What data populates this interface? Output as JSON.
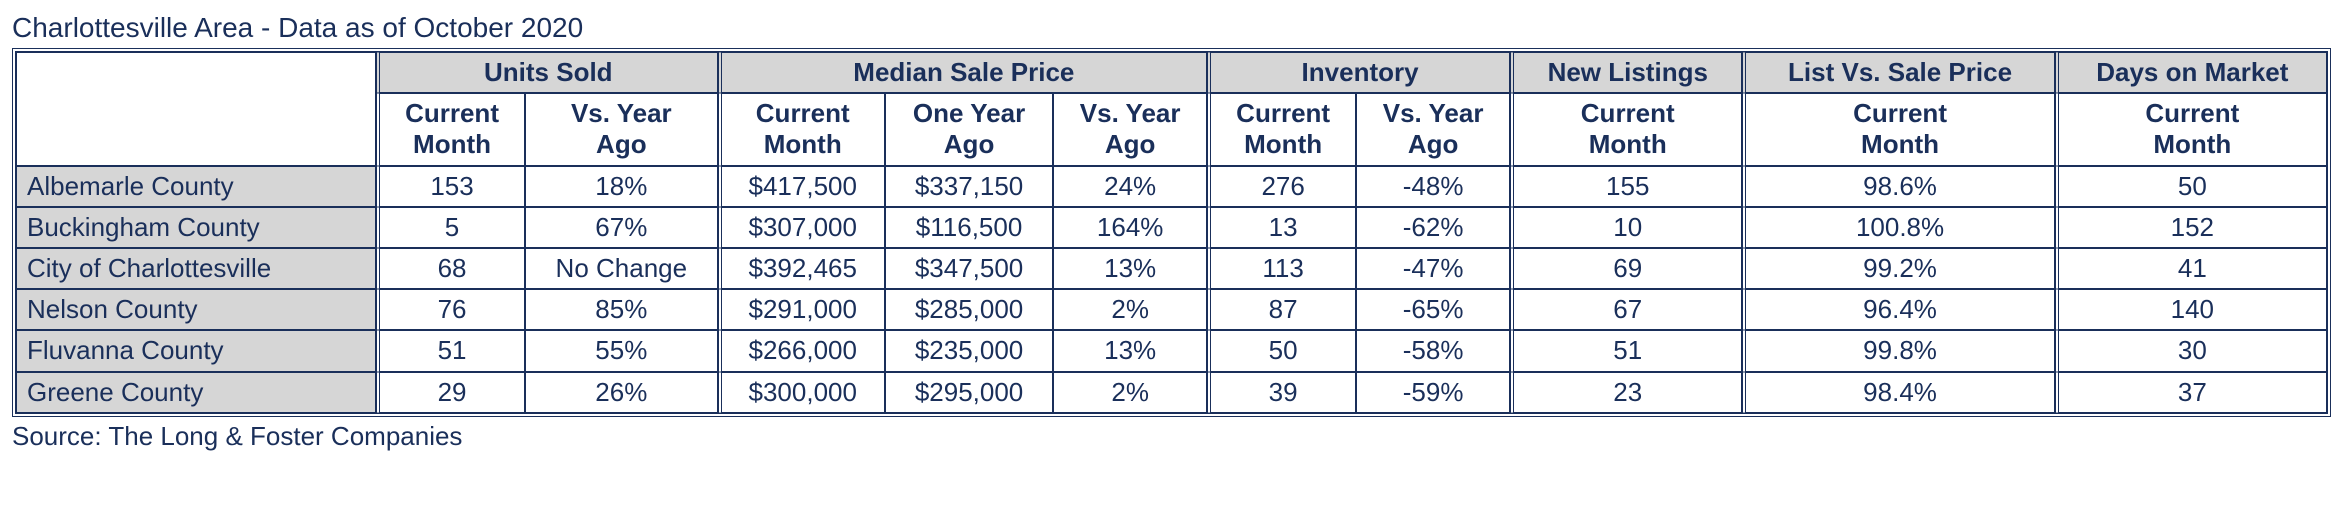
{
  "title": "Charlottesville Area - Data as of October 2020",
  "source": "Source: The Long & Foster Companies",
  "colors": {
    "text": "#1a2f5a",
    "border": "#1a2f5a",
    "header_bg": "#d6d6d6",
    "body_bg": "#ffffff"
  },
  "groups": [
    {
      "label": "Units Sold",
      "subs": [
        "Current Month",
        "Vs. Year Ago"
      ]
    },
    {
      "label": "Median Sale Price",
      "subs": [
        "Current Month",
        "One Year Ago",
        "Vs. Year Ago"
      ]
    },
    {
      "label": "Inventory",
      "subs": [
        "Current Month",
        "Vs. Year Ago"
      ]
    },
    {
      "label": "New Listings",
      "subs": [
        "Current Month"
      ]
    },
    {
      "label": "List Vs. Sale Price",
      "subs": [
        "Current Month"
      ]
    },
    {
      "label": "Days on Market",
      "subs": [
        "Current Month"
      ]
    }
  ],
  "rows": [
    {
      "label": "Albemarle County",
      "cells": [
        "153",
        "18%",
        "$417,500",
        "$337,150",
        "24%",
        "276",
        "-48%",
        "155",
        "98.6%",
        "50"
      ]
    },
    {
      "label": "Buckingham County",
      "cells": [
        "5",
        "67%",
        "$307,000",
        "$116,500",
        "164%",
        "13",
        "-62%",
        "10",
        "100.8%",
        "152"
      ]
    },
    {
      "label": "City of Charlottesville",
      "cells": [
        "68",
        "No Change",
        "$392,465",
        "$347,500",
        "13%",
        "113",
        "-47%",
        "69",
        "99.2%",
        "41"
      ]
    },
    {
      "label": "Nelson County",
      "cells": [
        "76",
        "85%",
        "$291,000",
        "$285,000",
        "2%",
        "87",
        "-65%",
        "67",
        "96.4%",
        "140"
      ]
    },
    {
      "label": "Fluvanna County",
      "cells": [
        "51",
        "55%",
        "$266,000",
        "$235,000",
        "13%",
        "50",
        "-58%",
        "51",
        "99.8%",
        "30"
      ]
    },
    {
      "label": "Greene County",
      "cells": [
        "29",
        "26%",
        "$300,000",
        "$295,000",
        "2%",
        "39",
        "-59%",
        "23",
        "98.4%",
        "37"
      ]
    }
  ]
}
